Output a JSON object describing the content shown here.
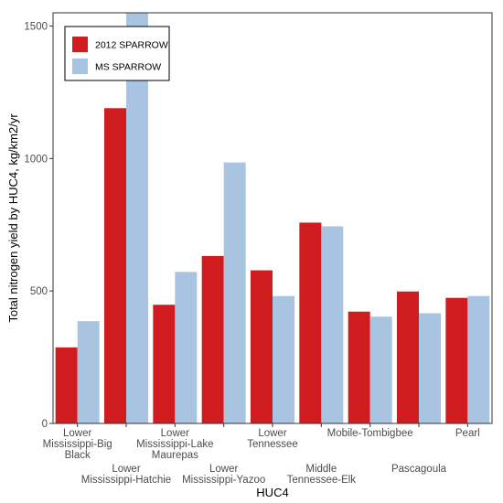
{
  "chart_data": {
    "type": "bar",
    "title": "",
    "xlabel": "HUC4",
    "ylabel": "Total nitrogen yield by HUC4, kg/km2/yr",
    "ylim": [
      0,
      1550
    ],
    "yticks": [
      0,
      500,
      1000,
      1500
    ],
    "grid": false,
    "legend_position": "top-left",
    "categories": [
      {
        "lines": [
          "Lower",
          "Mississippi-Big",
          "Black"
        ],
        "row": 0
      },
      {
        "lines": [
          "Lower",
          "Mississippi-Hatchie"
        ],
        "row": 1
      },
      {
        "lines": [
          "Lower",
          "Mississippi-Lake",
          "Maurepas"
        ],
        "row": 0
      },
      {
        "lines": [
          "Lower",
          "Mississippi-Yazoo"
        ],
        "row": 1
      },
      {
        "lines": [
          "Lower",
          "Tennessee"
        ],
        "row": 0
      },
      {
        "lines": [
          "Middle",
          "Tennessee-Elk"
        ],
        "row": 1
      },
      {
        "lines": [
          "Mobile-Tombigbee"
        ],
        "row": 0
      },
      {
        "lines": [
          "Pascagoula"
        ],
        "row": 1
      },
      {
        "lines": [
          "Pearl"
        ],
        "row": 0
      }
    ],
    "series": [
      {
        "name": "2012 SPARROW",
        "color": "#d01c1f",
        "values": [
          287,
          1190,
          448,
          632,
          578,
          758,
          422,
          498,
          474
        ]
      },
      {
        "name": "MS SPARROW",
        "color": "#a9c4e0",
        "values": [
          386,
          1560,
          572,
          985,
          481,
          744,
          403,
          416,
          481
        ]
      }
    ]
  }
}
